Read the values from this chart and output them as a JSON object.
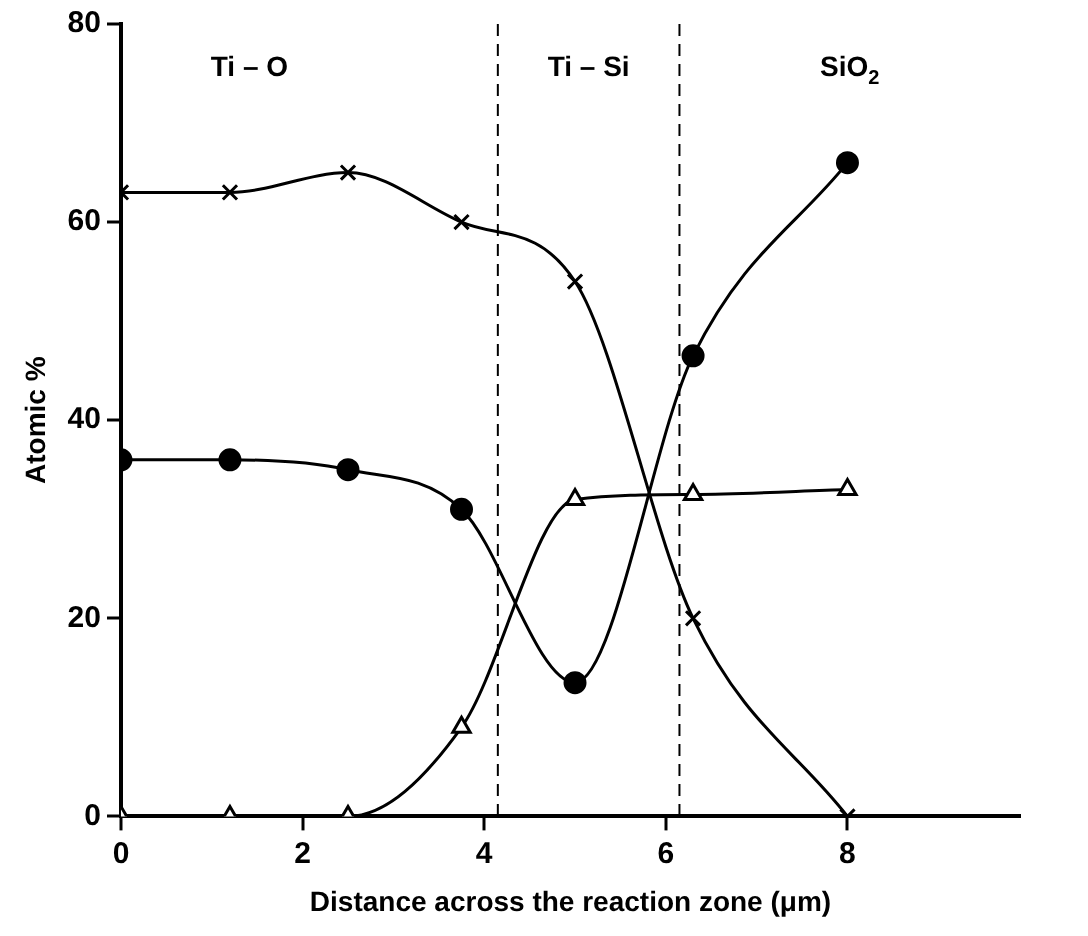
{
  "chart_data": {
    "type": "line",
    "xlabel": "Distance across the reaction zone (μm)",
    "ylabel": "Atomic %",
    "xlim": [
      0,
      9.9
    ],
    "ylim": [
      0,
      80
    ],
    "xticks": [
      0,
      2,
      4,
      6,
      8
    ],
    "yticks": [
      0,
      20,
      40,
      60,
      80
    ],
    "grid": false,
    "legend": false,
    "x": [
      0,
      1.2,
      2.5,
      3.75,
      5,
      6.3,
      8
    ],
    "series": [
      {
        "color": "#000000",
        "marker": "cross",
        "values": [
          63,
          63,
          65,
          60,
          54,
          20,
          0
        ]
      },
      {
        "color": "#000000",
        "marker": "circle",
        "values": [
          36,
          36,
          35,
          31,
          13.5,
          46.5,
          66
        ]
      },
      {
        "color": "#000000",
        "marker": "triangle",
        "values": [
          0,
          0,
          0,
          9,
          32,
          32.5,
          33
        ]
      }
    ],
    "ref_lines": [
      {
        "axis": "x",
        "value": 4.15,
        "line_style": "dashed"
      },
      {
        "axis": "x",
        "value": 6.15,
        "line_style": "dashed"
      }
    ],
    "annotations": [
      "Ti – O",
      "Ti – Si",
      "SiO$_{2}$"
    ]
  }
}
